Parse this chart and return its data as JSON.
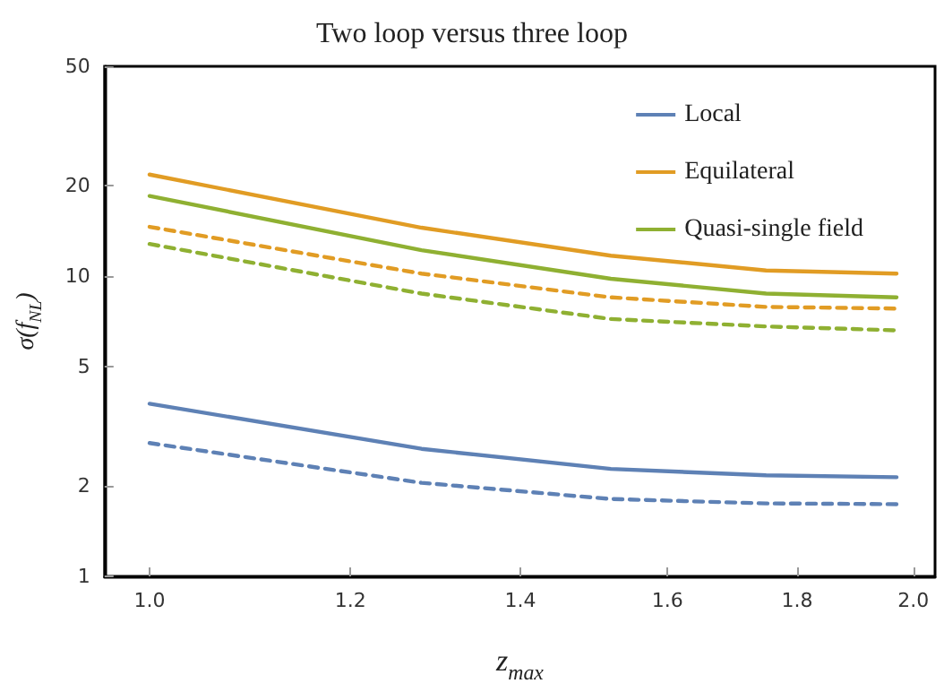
{
  "chart_data": {
    "type": "line",
    "title": "Two loop versus three loop",
    "xlabel": "z$_{max}$",
    "ylabel": "σ(f$_{NL}$)",
    "log": "xy",
    "grid": false,
    "legend": "top right",
    "marker": "none",
    "x": [
      1.0,
      1.28,
      1.52,
      1.75,
      1.97
    ],
    "xlim": [
      0.96,
      2.04
    ],
    "xticks": [
      {
        "value": 1.0,
        "label": "1.0"
      },
      {
        "value": 1.2,
        "label": "1.2"
      },
      {
        "value": 1.4,
        "label": "1.4"
      },
      {
        "value": 1.6,
        "label": "1.6"
      },
      {
        "value": 1.8,
        "label": "1.8"
      },
      {
        "value": 2.0,
        "label": "2.0"
      }
    ],
    "ylim": [
      1,
      50
    ],
    "yticks": [
      1,
      2,
      5,
      10,
      20,
      50
    ],
    "series": [
      {
        "name": "Local",
        "color": "#5e81b5",
        "line_style": "solid",
        "values": [
          3.76,
          2.66,
          2.28,
          2.17,
          2.14
        ]
      },
      {
        "name": "Equilateral",
        "color": "#e19c24",
        "line_style": "solid",
        "values": [
          21.8,
          14.5,
          11.7,
          10.45,
          10.2
        ]
      },
      {
        "name": "Quasi-single field",
        "color": "#8fb032",
        "line_style": "solid",
        "values": [
          18.5,
          12.2,
          9.8,
          8.75,
          8.5
        ]
      },
      {
        "color": "#5e81b5",
        "line_style": "dashed",
        "values": [
          2.78,
          2.05,
          1.81,
          1.75,
          1.74
        ]
      },
      {
        "color": "#e19c24",
        "line_style": "dashed",
        "values": [
          14.6,
          10.2,
          8.5,
          7.9,
          7.8
        ]
      },
      {
        "color": "#8fb032",
        "line_style": "dashed",
        "values": [
          12.8,
          8.75,
          7.2,
          6.8,
          6.6
        ]
      }
    ]
  }
}
